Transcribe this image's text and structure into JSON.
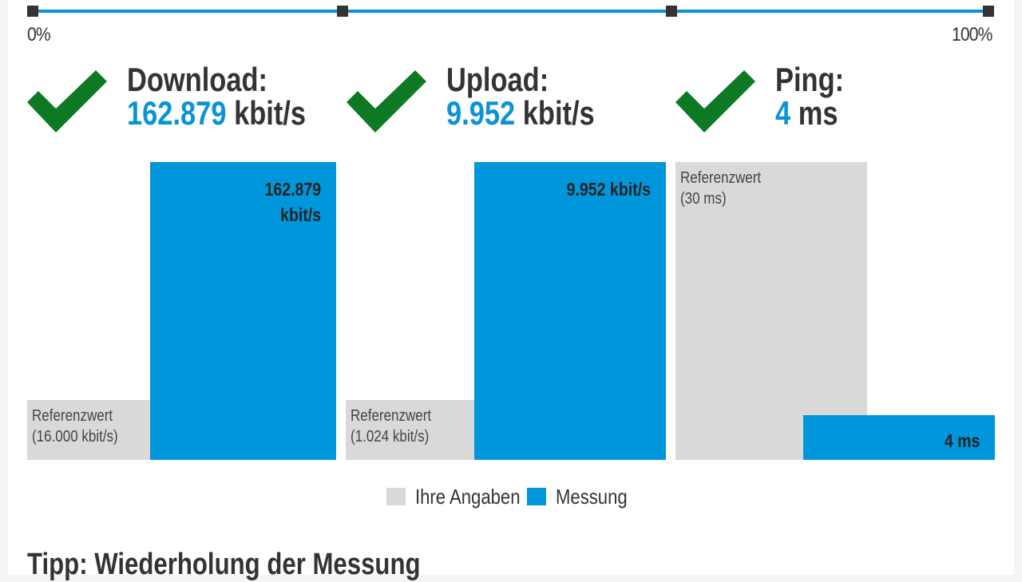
{
  "progress": {
    "start_label": "0%",
    "end_label": "100%",
    "percent": 100
  },
  "results": [
    {
      "title": "Download:",
      "value": "162.879",
      "unit": "kbit/s"
    },
    {
      "title": "Upload:",
      "value": "9.952",
      "unit": "kbit/s"
    },
    {
      "title": "Ping:",
      "value": "4",
      "unit": "ms"
    }
  ],
  "chart_data": {
    "type": "bar",
    "series": [
      {
        "name": "Ihre Angaben",
        "color": "#d9d9d9"
      },
      {
        "name": "Messung",
        "color": "#0096dc"
      }
    ],
    "groups": [
      {
        "metric": "Download",
        "reference_label": "Referenzwert",
        "reference_value_text": "(16.000 kbit/s)",
        "reference_fraction": 0.2,
        "measured_text": "162.879\nkbit/s",
        "measured_fraction": 1.0
      },
      {
        "metric": "Upload",
        "reference_label": "Referenzwert",
        "reference_value_text": "(1.024 kbit/s)",
        "reference_fraction": 0.2,
        "measured_text": "9.952 kbit/s",
        "measured_fraction": 1.0
      },
      {
        "metric": "Ping",
        "reference_label": "Referenzwert",
        "reference_value_text": "(30 ms)",
        "reference_fraction": 1.0,
        "measured_text": "4 ms",
        "measured_fraction": 0.15
      }
    ],
    "legend": {
      "placement": "bottom-center"
    }
  },
  "colors": {
    "accent": "#0a94d6",
    "bar_measured": "#0096dc",
    "bar_reference": "#d9d9d9",
    "check": "#0d7a23"
  },
  "icons": {
    "result_icon": "checkmark-icon"
  },
  "tip": {
    "heading": "Tipp: Wiederholung der Messung"
  }
}
